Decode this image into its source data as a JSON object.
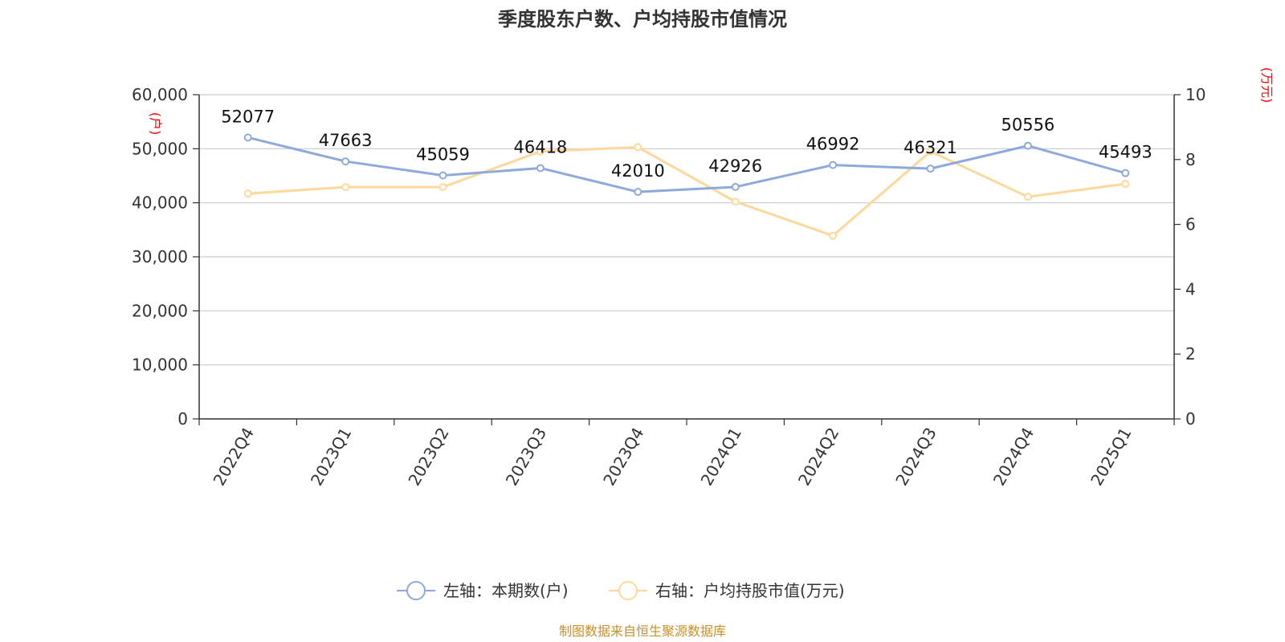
{
  "chart_data": {
    "type": "line",
    "title": "季度股东户数、户均持股市值情况",
    "categories": [
      "2022Q4",
      "2023Q1",
      "2023Q2",
      "2023Q3",
      "2023Q4",
      "2024Q1",
      "2024Q2",
      "2024Q3",
      "2024Q4",
      "2025Q1"
    ],
    "left_axis": {
      "unit_label": "(户)",
      "ylim": [
        0,
        60000
      ],
      "ticks": [
        "0",
        "10,000",
        "20,000",
        "30,000",
        "40,000",
        "50,000",
        "60,000"
      ],
      "tick_values": [
        0,
        10000,
        20000,
        30000,
        40000,
        50000,
        60000
      ]
    },
    "right_axis": {
      "unit_label": "(万元)",
      "ylim": [
        0,
        10
      ],
      "ticks": [
        "0",
        "2",
        "4",
        "6",
        "8",
        "10"
      ],
      "tick_values": [
        0,
        2,
        4,
        6,
        8,
        10
      ]
    },
    "series": [
      {
        "name": "左轴：本期数(户)",
        "axis": "left",
        "color": "#8eaadb",
        "values": [
          52077,
          47663,
          45059,
          46418,
          42010,
          42926,
          46992,
          46321,
          50556,
          45493
        ],
        "labels": [
          "52077",
          "47663",
          "45059",
          "46418",
          "42010",
          "42926",
          "46992",
          "46321",
          "50556",
          "45493"
        ]
      },
      {
        "name": "右轴：户均持股市值(万元)",
        "axis": "right",
        "color": "#fdd89a",
        "values": [
          6.95,
          7.15,
          7.15,
          8.25,
          8.38,
          6.7,
          5.65,
          8.25,
          6.85,
          7.25
        ]
      }
    ],
    "grid": true,
    "legend_position": "bottom-center"
  },
  "source_note": "制图数据来自恒生聚源数据库"
}
